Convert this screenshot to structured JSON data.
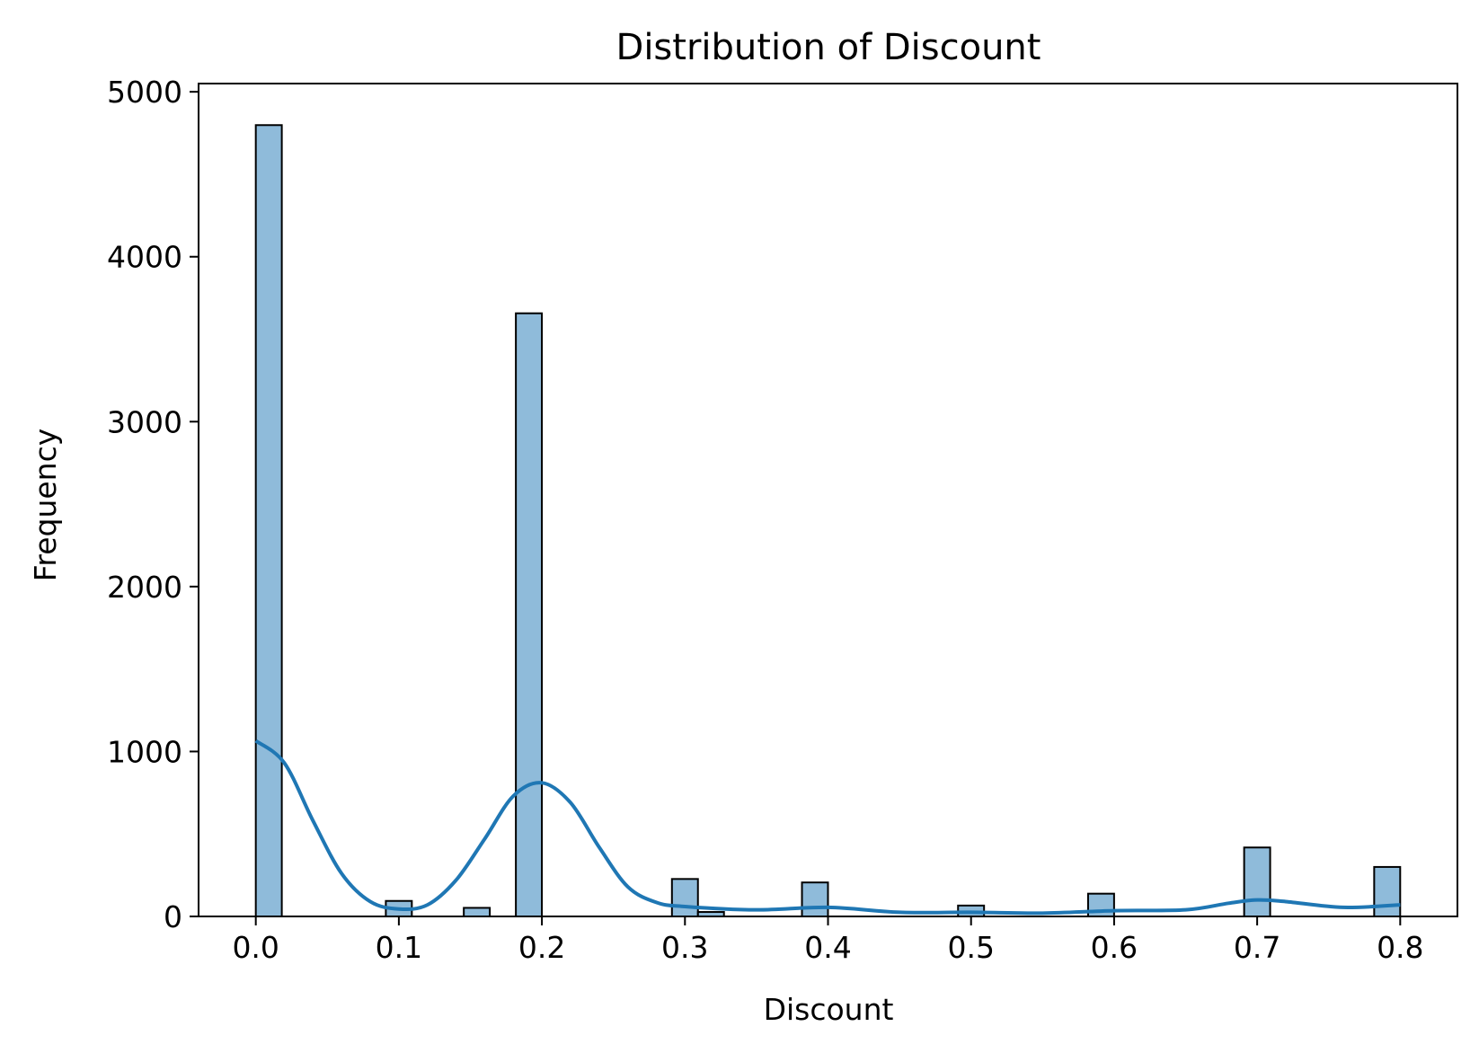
{
  "chart_data": {
    "type": "bar",
    "title": "Distribution of Discount",
    "xlabel": "Discount",
    "ylabel": "Frequency",
    "xlim": [
      -0.04,
      0.84
    ],
    "ylim": [
      0,
      5050
    ],
    "x_ticks": [
      0.0,
      0.1,
      0.2,
      0.3,
      0.4,
      0.5,
      0.6,
      0.7,
      0.8
    ],
    "x_tick_labels": [
      "0.0",
      "0.1",
      "0.2",
      "0.3",
      "0.4",
      "0.5",
      "0.6",
      "0.7",
      "0.8"
    ],
    "y_ticks": [
      0,
      1000,
      2000,
      3000,
      4000,
      5000
    ],
    "y_tick_labels": [
      "0",
      "1000",
      "2000",
      "3000",
      "4000",
      "5000"
    ],
    "grid": false,
    "bin_width": 0.01818,
    "bins": [
      {
        "left": 0.0,
        "count": 4798
      },
      {
        "left": 0.0909,
        "count": 94
      },
      {
        "left": 0.1454,
        "count": 52
      },
      {
        "left": 0.1818,
        "count": 3657
      },
      {
        "left": 0.2909,
        "count": 227
      },
      {
        "left": 0.3091,
        "count": 27
      },
      {
        "left": 0.3818,
        "count": 206
      },
      {
        "left": 0.4909,
        "count": 66
      },
      {
        "left": 0.5818,
        "count": 138
      },
      {
        "left": 0.6909,
        "count": 418
      },
      {
        "left": 0.7818,
        "count": 300
      }
    ],
    "kde": {
      "x": [
        0.0,
        0.02,
        0.04,
        0.06,
        0.08,
        0.1,
        0.12,
        0.14,
        0.16,
        0.18,
        0.2,
        0.22,
        0.24,
        0.26,
        0.28,
        0.3,
        0.35,
        0.4,
        0.45,
        0.5,
        0.55,
        0.6,
        0.65,
        0.68,
        0.7,
        0.72,
        0.76,
        0.8
      ],
      "y": [
        1065,
        930,
        580,
        260,
        90,
        45,
        70,
        220,
        470,
        730,
        810,
        690,
        420,
        180,
        85,
        60,
        40,
        55,
        25,
        25,
        20,
        35,
        40,
        80,
        100,
        90,
        55,
        70
      ]
    },
    "colors": {
      "bar_fill": "#8fbbda",
      "bar_edge": "#000000",
      "kde_line": "#1f77b4"
    }
  }
}
